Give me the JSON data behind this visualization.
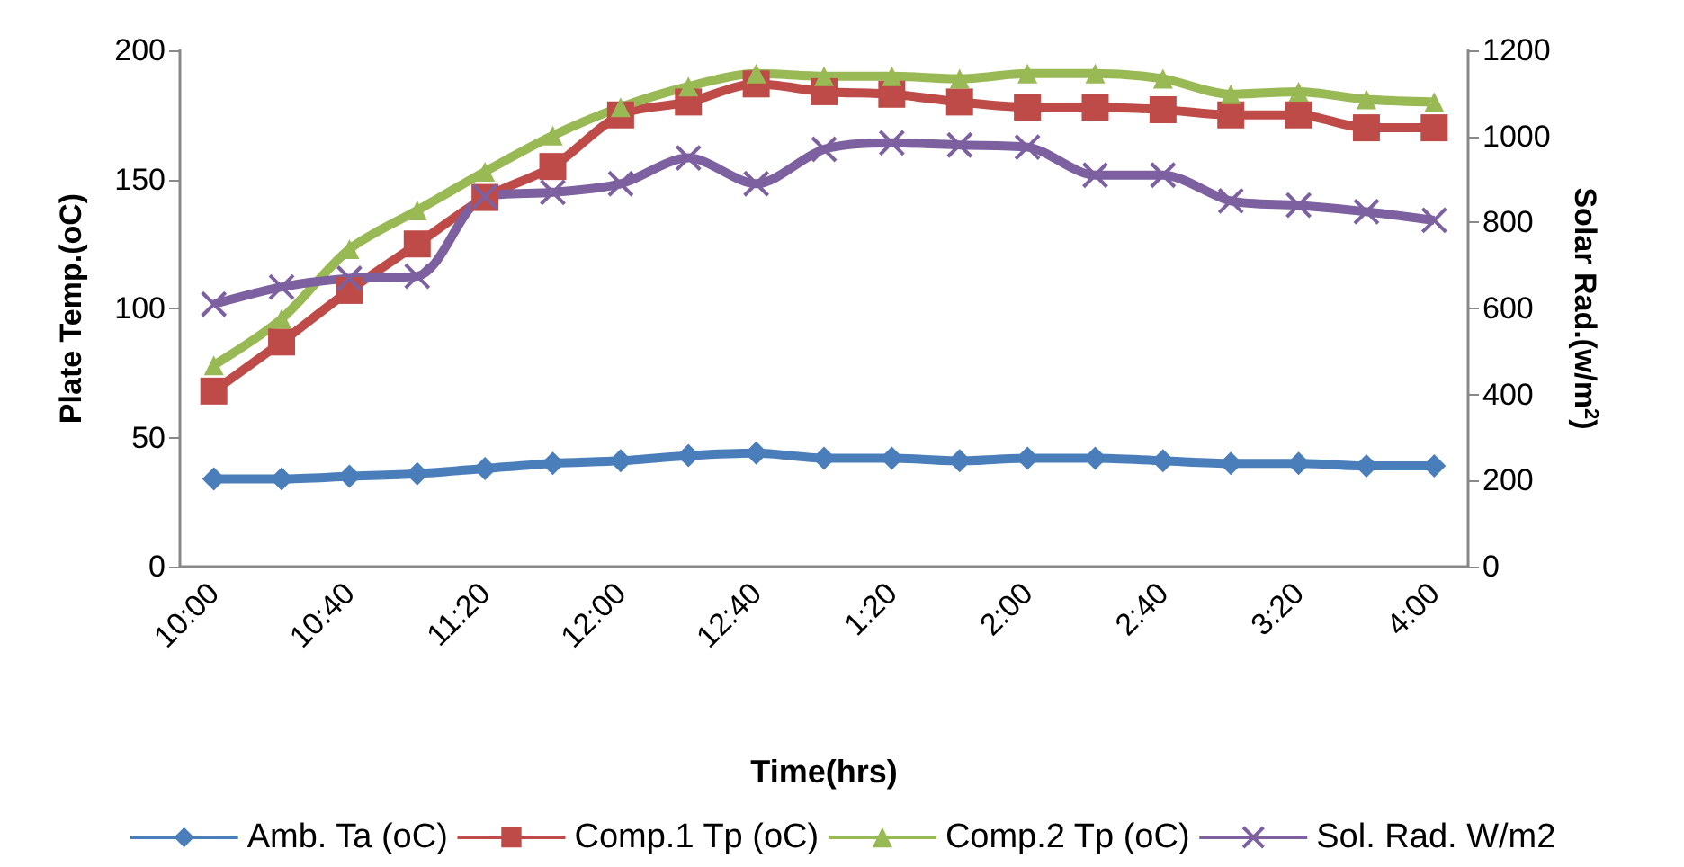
{
  "chart_data": {
    "type": "line",
    "xlabel": "Time(hrs)",
    "ylabel": "Plate Temp.(oC)",
    "y2label": "Solar Rad.(w/m$^{2}$)",
    "categories": [
      "10:00",
      null,
      "10:40",
      null,
      "11:20",
      null,
      "12:00",
      null,
      "12:40",
      null,
      "1:20",
      null,
      "2:00",
      null,
      "2:40",
      null,
      "3:20",
      null,
      "4:00"
    ],
    "series": [
      {
        "name": "Amb. Ta (oC)",
        "color": "#4a7ebb",
        "marker": "diamond",
        "values": [
          34,
          34,
          35,
          36,
          38,
          40,
          41,
          43,
          44,
          42,
          42,
          41,
          42,
          42,
          41,
          40,
          40,
          39,
          39
        ]
      },
      {
        "name": "Comp.1 Tp (oC)",
        "color": "#be4b48",
        "marker": "square",
        "values": [
          68,
          87,
          107,
          125,
          143,
          155,
          175,
          180,
          187,
          184,
          183,
          180,
          178,
          178,
          177,
          175,
          175,
          170,
          170
        ]
      },
      {
        "name": "Comp.2 Tp (oC)",
        "color": "#98b954",
        "marker": "triangle",
        "values": [
          78,
          96,
          123,
          138,
          153,
          167,
          178,
          186,
          191,
          190,
          190,
          189,
          191,
          191,
          189,
          183,
          184,
          181,
          180
        ]
      },
      {
        "name": "Sol. Rad. W/m2",
        "color": "#7d60a0",
        "marker": "cross",
        "axis": "y2",
        "values": [
          610,
          650,
          670,
          675,
          860,
          870,
          890,
          950,
          890,
          970,
          985,
          980,
          975,
          910,
          910,
          850,
          840,
          825,
          805
        ]
      }
    ],
    "ylim": [
      0,
      200
    ],
    "yticks": [
      0,
      50,
      100,
      150,
      200
    ],
    "y2lim": [
      0,
      1200
    ],
    "y2ticks": [
      0,
      200,
      400,
      600,
      800,
      1000,
      1200
    ],
    "grid": false,
    "legend": "bottom"
  }
}
